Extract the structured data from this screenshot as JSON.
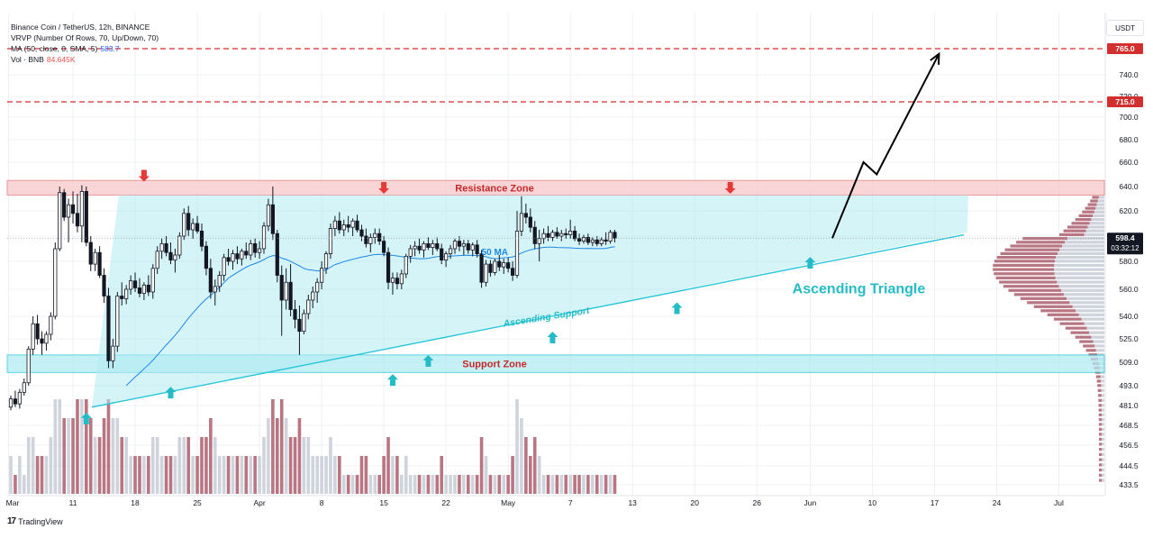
{
  "legend": {
    "title": "Binance Coin / TetherUS, 12h, BINANCE",
    "vrvp": "VRVP (Number Of Rows, 70, Up/Down, 70)",
    "ma_label": "MA (50, close, 0, SMA, 5)",
    "ma_value": "583.7",
    "vol_label": "Vol · BNB",
    "vol_value": "84.645K"
  },
  "currency": "USDT",
  "branding": "TradingView",
  "colors": {
    "up": "#cfd3db",
    "down": "#b87682",
    "candle": "#131722",
    "teal_fill": "#b2ebf2",
    "teal_line": "#26c6da",
    "resistance_fill": "#f8c8cc",
    "red": "#d32f2f",
    "ma": "#1e88e5",
    "arrow_up": "#26bcc6",
    "arrow_down": "#e53935"
  },
  "chart_data": {
    "type": "candlestick",
    "y_axis": {
      "ticks": [
        "433.5",
        "444.5",
        "456.5",
        "468.5",
        "481.0",
        "493.0",
        "509.0",
        "525.0",
        "540.0",
        "560.0",
        "580.0",
        "600.0",
        "620.0",
        "640.0",
        "660.0",
        "680.0",
        "700.0",
        "720.0",
        "740.0",
        "765.0"
      ],
      "highlight_labels": [
        {
          "value": 765,
          "text": "765.0",
          "color": "#d32f2f"
        },
        {
          "value": 715,
          "text": "715.0",
          "color": "#d32f2f"
        },
        {
          "value": 598.4,
          "text": "598.4",
          "sub": "03:32:12",
          "color": "#131722"
        }
      ]
    },
    "x_axis": {
      "ticks": [
        {
          "i": -0.5,
          "label": "Mar"
        },
        {
          "i": 14,
          "label": "11"
        },
        {
          "i": 28,
          "label": "18"
        },
        {
          "i": 42,
          "label": "25"
        },
        {
          "i": 56,
          "label": "Apr"
        },
        {
          "i": 70,
          "label": "8"
        },
        {
          "i": 84,
          "label": "15"
        },
        {
          "i": 98,
          "label": "22"
        },
        {
          "i": 112,
          "label": "May"
        },
        {
          "i": 126,
          "label": "7"
        },
        {
          "i": 140,
          "label": "13"
        },
        {
          "i": 154,
          "label": "20"
        },
        {
          "i": 168,
          "label": "26"
        },
        {
          "i": 180,
          "label": "Jun"
        },
        {
          "i": 194,
          "label": "10"
        },
        {
          "i": 208,
          "label": "17"
        },
        {
          "i": 222,
          "label": "24"
        },
        {
          "i": 236,
          "label": "Jul"
        }
      ]
    },
    "zones": [
      {
        "name": "Resistance Zone",
        "from": 633,
        "to": 645,
        "color": "#f8c8cc",
        "label_color": "#c62828"
      },
      {
        "name": "Support Zone",
        "from": 502,
        "to": 514,
        "color": "#b2ebf2",
        "label_color": "#c62828"
      }
    ],
    "levels": [
      {
        "value": 765,
        "style": "dashed",
        "color": "#d32f2f"
      },
      {
        "value": 715,
        "style": "dashed",
        "color": "#d32f2f"
      }
    ],
    "annotations": [
      {
        "text": "Ascending Triangle",
        "i": 176,
        "y": 557,
        "color": "#26bcc6"
      },
      {
        "text": "Ascending Support",
        "i": 111,
        "y": 533,
        "color": "#26bcc6",
        "rotate": -9
      },
      {
        "text": "50 MA",
        "i": 106,
        "y": 585,
        "color": "#1e88e5"
      }
    ],
    "triangle": {
      "top_y": 633,
      "start": [
        0,
        480
      ],
      "end": [
        189,
        600
      ]
    },
    "projection": [
      [
        185,
        598.4
      ],
      [
        192,
        660
      ],
      [
        195,
        650
      ],
      [
        209,
        760
      ]
    ],
    "up_arrows": [
      {
        "i": 17,
        "y": 472
      },
      {
        "i": 36,
        "y": 488
      },
      {
        "i": 86,
        "y": 496
      },
      {
        "i": 94,
        "y": 509
      },
      {
        "i": 122,
        "y": 525
      },
      {
        "i": 150,
        "y": 545
      },
      {
        "i": 180,
        "y": 578
      }
    ],
    "down_arrows": [
      {
        "i": 30,
        "y": 650
      },
      {
        "i": 84,
        "y": 640
      },
      {
        "i": 162,
        "y": 640
      }
    ],
    "candles": [
      [
        480.0,
        487.0,
        478.0,
        485.0,
        2
      ],
      [
        485.0,
        490.0,
        480.0,
        482.0,
        1
      ],
      [
        482.0,
        491.0,
        479.0,
        489.0,
        2
      ],
      [
        489.0,
        498.0,
        487.0,
        495.0,
        1
      ],
      [
        495.0,
        520.0,
        493.0,
        518.0,
        3
      ],
      [
        518.0,
        540.0,
        514.0,
        535.0,
        3
      ],
      [
        535.0,
        541.0,
        521.0,
        525.0,
        2
      ],
      [
        525.0,
        530.0,
        514.0,
        522.0,
        2
      ],
      [
        522.0,
        530.0,
        517.0,
        528.0,
        2
      ],
      [
        528.0,
        543.0,
        524.0,
        540.0,
        3
      ],
      [
        540.0,
        595.0,
        538.0,
        590.0,
        5
      ],
      [
        590.0,
        640.0,
        588.0,
        635.0,
        5
      ],
      [
        635.0,
        638.0,
        612.0,
        615.0,
        4
      ],
      [
        615.0,
        630.0,
        595.0,
        625.0,
        4
      ],
      [
        625.0,
        636.0,
        610.0,
        618.0,
        4
      ],
      [
        618.0,
        634.0,
        603.0,
        608.0,
        5
      ],
      [
        608.0,
        641.0,
        595.0,
        636.0,
        5
      ],
      [
        636.0,
        640.0,
        592.0,
        595.0,
        5
      ],
      [
        595.0,
        600.0,
        573.0,
        578.0,
        4
      ],
      [
        578.0,
        590.0,
        573.0,
        587.0,
        3
      ],
      [
        587.0,
        592.0,
        568.0,
        570.0,
        3
      ],
      [
        570.0,
        575.0,
        550.0,
        555.0,
        4
      ],
      [
        555.0,
        561.0,
        505.0,
        510.0,
        5
      ],
      [
        510.0,
        525.0,
        505.0,
        520.0,
        4
      ],
      [
        520.0,
        558.0,
        516.0,
        555.0,
        4
      ],
      [
        555.0,
        565.0,
        548.0,
        553.0,
        3
      ],
      [
        553.0,
        563.0,
        549.0,
        560.0,
        3
      ],
      [
        560.0,
        570.0,
        556.0,
        566.0,
        2
      ],
      [
        566.0,
        572.0,
        558.0,
        561.0,
        2
      ],
      [
        561.0,
        568.0,
        554.0,
        557.0,
        2
      ],
      [
        557.0,
        565.0,
        552.0,
        563.0,
        2
      ],
      [
        563.0,
        570.0,
        555.0,
        558.0,
        2
      ],
      [
        558.0,
        578.0,
        553.0,
        575.0,
        3
      ],
      [
        575.0,
        592.0,
        571.0,
        588.0,
        3
      ],
      [
        588.0,
        598.0,
        582.0,
        594.0,
        2
      ],
      [
        594.0,
        600.0,
        584.0,
        587.0,
        2
      ],
      [
        587.0,
        595.0,
        578.0,
        581.0,
        2
      ],
      [
        581.0,
        590.0,
        572.0,
        585.0,
        2
      ],
      [
        585.0,
        603.0,
        582.0,
        600.0,
        3
      ],
      [
        600.0,
        622.0,
        597.0,
        618.0,
        3
      ],
      [
        618.0,
        624.0,
        600.0,
        605.0,
        3
      ],
      [
        605.0,
        614.0,
        598.0,
        610.0,
        2
      ],
      [
        610.0,
        616.0,
        602.0,
        604.0,
        2
      ],
      [
        604.0,
        610.0,
        588.0,
        592.0,
        3
      ],
      [
        592.0,
        596.0,
        570.0,
        575.0,
        3
      ],
      [
        575.0,
        582.0,
        553.0,
        558.0,
        4
      ],
      [
        558.0,
        567.0,
        548.0,
        562.0,
        3
      ],
      [
        562.0,
        573.0,
        558.0,
        570.0,
        2
      ],
      [
        570.0,
        586.0,
        566.0,
        583.0,
        2
      ],
      [
        583.0,
        590.0,
        577.0,
        580.0,
        2
      ],
      [
        580.0,
        589.0,
        574.0,
        586.0,
        2
      ],
      [
        586.0,
        592.0,
        578.0,
        582.0,
        2
      ],
      [
        582.0,
        590.0,
        577.0,
        588.0,
        2
      ],
      [
        588.0,
        595.0,
        582.0,
        585.0,
        2
      ],
      [
        585.0,
        597.0,
        581.0,
        594.0,
        2
      ],
      [
        594.0,
        598.0,
        583.0,
        587.0,
        2
      ],
      [
        587.0,
        596.0,
        582.0,
        590.0,
        2
      ],
      [
        590.0,
        611.0,
        586.0,
        608.0,
        3
      ],
      [
        608.0,
        630.0,
        604.0,
        625.0,
        4
      ],
      [
        625.0,
        640.0,
        597.0,
        602.0,
        5
      ],
      [
        602.0,
        605.0,
        565.0,
        570.0,
        4
      ],
      [
        570.0,
        577.0,
        527.0,
        552.0,
        5
      ],
      [
        552.0,
        575.0,
        545.0,
        565.0,
        4
      ],
      [
        565.0,
        578.0,
        540.0,
        545.0,
        3
      ],
      [
        545.0,
        552.0,
        532.0,
        538.0,
        3
      ],
      [
        538.0,
        548.0,
        514.0,
        530.0,
        4
      ],
      [
        530.0,
        545.0,
        528.0,
        542.0,
        3
      ],
      [
        542.0,
        556.0,
        538.0,
        552.0,
        3
      ],
      [
        552.0,
        562.0,
        546.0,
        558.0,
        2
      ],
      [
        558.0,
        568.0,
        550.0,
        565.0,
        2
      ],
      [
        565.0,
        580.0,
        560.0,
        575.0,
        2
      ],
      [
        575.0,
        588.0,
        571.0,
        586.0,
        2
      ],
      [
        586.0,
        610.0,
        582.0,
        606.0,
        3
      ],
      [
        606.0,
        616.0,
        600.0,
        612.0,
        2
      ],
      [
        612.0,
        619.0,
        602.0,
        605.0,
        2
      ],
      [
        605.0,
        613.0,
        600.0,
        609.0,
        1
      ],
      [
        609.0,
        616.0,
        603.0,
        607.0,
        1
      ],
      [
        607.0,
        614.0,
        600.0,
        612.0,
        1
      ],
      [
        612.0,
        617.0,
        603.0,
        605.0,
        1
      ],
      [
        605.0,
        609.0,
        596.0,
        600.0,
        2
      ],
      [
        600.0,
        606.0,
        591.0,
        594.0,
        2
      ],
      [
        594.0,
        602.0,
        587.0,
        599.0,
        1
      ],
      [
        599.0,
        606.0,
        594.0,
        602.0,
        1
      ],
      [
        602.0,
        606.0,
        593.0,
        596.0,
        1
      ],
      [
        596.0,
        600.0,
        584.0,
        587.0,
        2
      ],
      [
        587.0,
        591.0,
        560.0,
        565.0,
        3
      ],
      [
        565.0,
        572.0,
        556.0,
        568.0,
        2
      ],
      [
        568.0,
        572.0,
        560.0,
        564.0,
        2
      ],
      [
        564.0,
        574.0,
        560.0,
        571.0,
        1
      ],
      [
        571.0,
        586.0,
        568.0,
        584.0,
        2
      ],
      [
        584.0,
        593.0,
        579.0,
        590.0,
        1
      ],
      [
        590.0,
        596.0,
        584.0,
        592.0,
        1
      ],
      [
        592.0,
        598.0,
        586.0,
        589.0,
        1
      ],
      [
        589.0,
        596.0,
        583.0,
        594.0,
        1
      ],
      [
        594.0,
        599.0,
        589.0,
        591.0,
        1
      ],
      [
        591.0,
        597.0,
        585.0,
        594.0,
        1
      ],
      [
        594.0,
        599.0,
        588.0,
        590.0,
        1
      ],
      [
        590.0,
        594.0,
        578.0,
        581.0,
        2
      ],
      [
        581.0,
        588.0,
        576.0,
        586.0,
        1
      ],
      [
        586.0,
        593.0,
        582.0,
        590.0,
        1
      ],
      [
        590.0,
        598.0,
        586.0,
        596.0,
        1
      ],
      [
        596.0,
        600.0,
        588.0,
        592.0,
        1
      ],
      [
        592.0,
        597.0,
        585.0,
        594.0,
        1
      ],
      [
        594.0,
        597.0,
        586.0,
        589.0,
        1
      ],
      [
        589.0,
        595.0,
        584.0,
        593.0,
        1
      ],
      [
        593.0,
        597.0,
        583.0,
        586.0,
        1
      ],
      [
        586.0,
        589.0,
        561.0,
        565.0,
        3
      ],
      [
        565.0,
        581.0,
        562.0,
        578.0,
        2
      ],
      [
        578.0,
        581.0,
        569.0,
        572.0,
        1
      ],
      [
        572.0,
        582.0,
        570.0,
        580.0,
        1
      ],
      [
        580.0,
        585.0,
        573.0,
        576.0,
        1
      ],
      [
        576.0,
        582.0,
        571.0,
        579.0,
        1
      ],
      [
        579.0,
        583.0,
        572.0,
        575.0,
        1
      ],
      [
        575.0,
        580.0,
        566.0,
        570.0,
        2
      ],
      [
        570.0,
        620.0,
        568.0,
        604.0,
        5
      ],
      [
        604.0,
        632.0,
        600.0,
        618.0,
        4
      ],
      [
        618.0,
        626.0,
        610.0,
        615.0,
        3
      ],
      [
        615.0,
        622.0,
        603.0,
        607.0,
        2
      ],
      [
        607.0,
        612.0,
        590.0,
        594.0,
        3
      ],
      [
        594.0,
        605.0,
        580.0,
        598.0,
        2
      ],
      [
        598.0,
        606.0,
        594.0,
        602.0,
        1
      ],
      [
        602.0,
        608.0,
        596.0,
        599.0,
        1
      ],
      [
        599.0,
        605.0,
        596.0,
        603.0,
        1
      ],
      [
        603.0,
        607.0,
        598.0,
        600.0,
        1
      ],
      [
        600.0,
        605.0,
        596.0,
        602.0,
        1
      ],
      [
        602.0,
        606.0,
        598.0,
        601.0,
        1
      ],
      [
        601.0,
        613.0,
        598.0,
        604.0,
        1
      ],
      [
        604.0,
        608.0,
        596.0,
        598.0,
        1
      ],
      [
        598.0,
        602.0,
        593.0,
        596.0,
        1
      ],
      [
        596.0,
        601.0,
        594.0,
        599.0,
        1
      ],
      [
        599.0,
        602.0,
        593.0,
        595.0,
        1
      ],
      [
        595.0,
        599.0,
        592.0,
        597.0,
        1
      ],
      [
        597.0,
        600.0,
        592.0,
        594.0,
        1
      ],
      [
        594.0,
        599.0,
        592.0,
        597.0,
        1
      ],
      [
        597.0,
        603.0,
        593.0,
        596.0,
        1
      ],
      [
        596.0,
        605.0,
        594.0,
        603.0,
        1
      ],
      [
        603.0,
        605.0,
        595.0,
        598.4,
        1
      ]
    ]
  }
}
